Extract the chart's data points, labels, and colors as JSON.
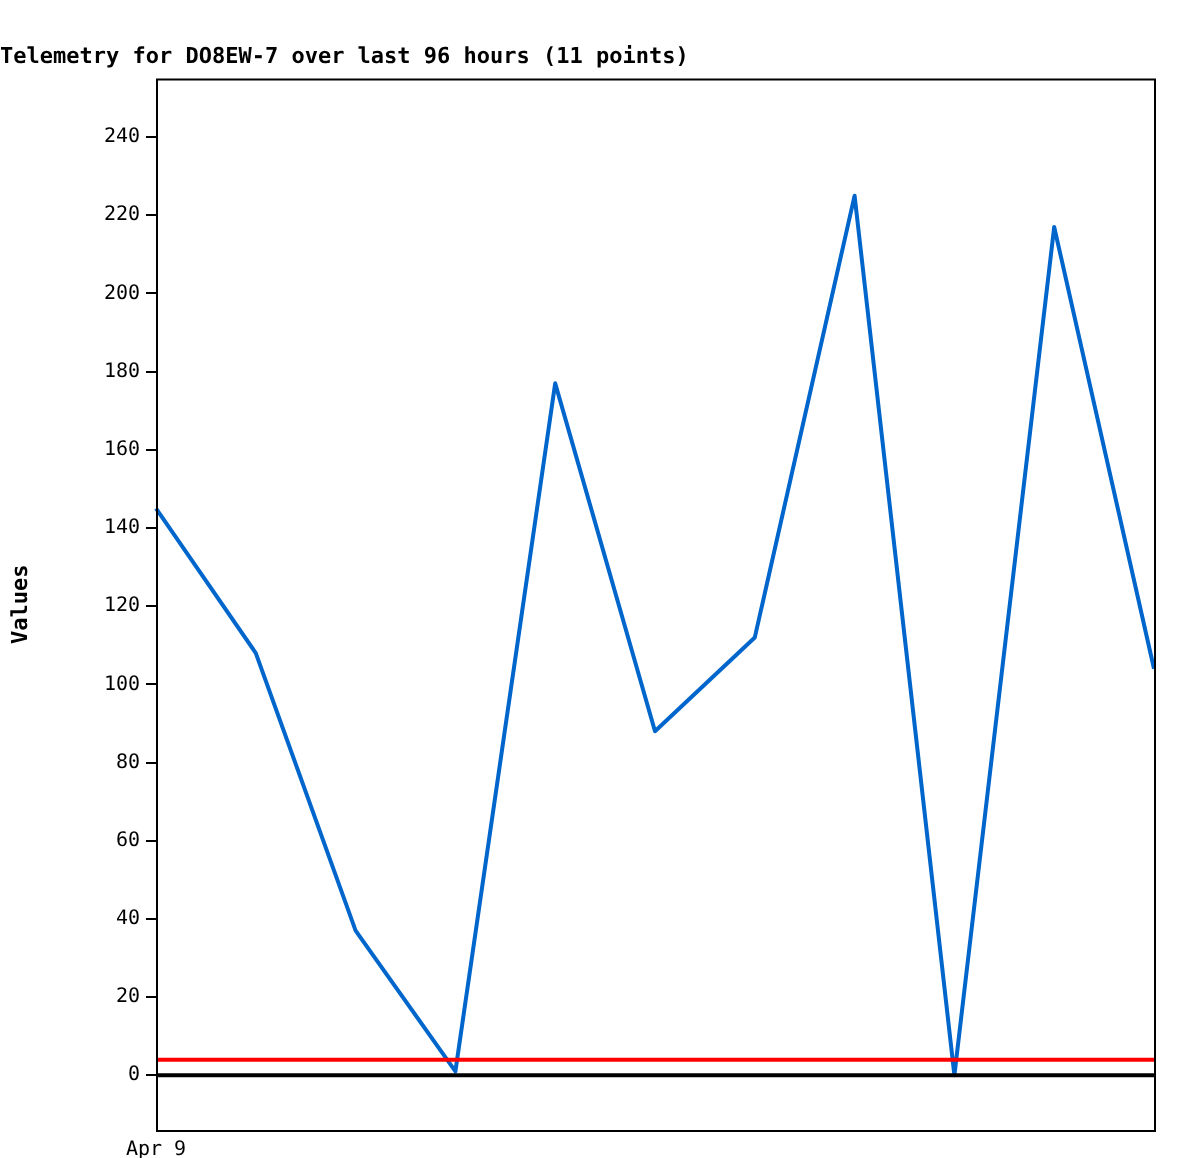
{
  "chart_data": {
    "type": "line",
    "title": "Telemetry for DO8EW-7 over last 96 hours (11 points)",
    "ylabel": "Values",
    "categories": [
      null,
      null,
      null,
      null,
      null,
      null,
      null,
      null,
      null,
      null,
      null
    ],
    "series": [
      {
        "color": "#0066cc",
        "values": [
          145,
          108,
          37,
          1,
          177,
          88,
          112,
          225,
          0,
          217,
          104
        ]
      }
    ],
    "annotations": [
      "Apr 9"
    ],
    "ylim": [
      -14,
      255
    ],
    "yticks": [
      0,
      20,
      40,
      60,
      80,
      100,
      120,
      140,
      160,
      180,
      200,
      220,
      240
    ],
    "ref_lines": [
      {
        "axis": "y",
        "value": 0,
        "color": "#000000"
      },
      {
        "axis": "y",
        "value": 4,
        "color": "#ff0000"
      }
    ],
    "grid": false,
    "legend": false,
    "marker": "none",
    "line_style": "solid"
  }
}
